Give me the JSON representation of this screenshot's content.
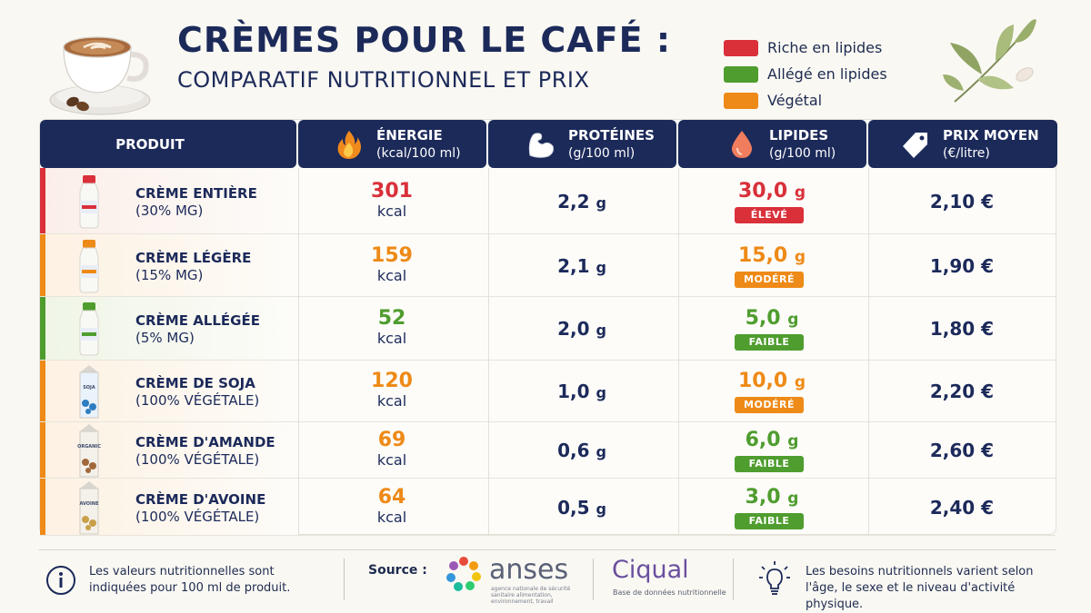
{
  "header": {
    "title": "CRÈMES POUR LE CAFÉ :",
    "subtitle": "COMPARATIF NUTRITIONNEL ET PRIX"
  },
  "legend": [
    {
      "label": "Riche en lipides",
      "color": "#d9303a"
    },
    {
      "label": "Allégé en lipides",
      "color": "#4f9d2f"
    },
    {
      "label": "Végétal",
      "color": "#ee8a17"
    }
  ],
  "table": {
    "columns": [
      {
        "label": "PRODUIT",
        "unit": ""
      },
      {
        "label": "ÉNERGIE",
        "unit": "(kcal/100 ml)",
        "icon": "flame-icon"
      },
      {
        "label": "PROTÉINES",
        "unit": "(g/100 ml)",
        "icon": "muscle-icon"
      },
      {
        "label": "LIPIDES",
        "unit": "(g/100 ml)",
        "icon": "drop-icon"
      },
      {
        "label": "PRIX MOYEN",
        "unit": "(€/litre)",
        "icon": "price-tag-icon"
      }
    ],
    "rows": [
      {
        "name": "CRÈME ENTIÈRE",
        "desc": "(30% MG)",
        "energy": "301",
        "energy_unit": "kcal",
        "protein": "2,2",
        "protein_unit": "g",
        "lipid": "30,0",
        "lipid_unit": "g",
        "badge": "ÉLEVÉ",
        "price": "2,10 €",
        "category_color": "#d9303a",
        "energy_color": "#d9303a",
        "lipid_color": "#d9303a",
        "badge_color": "#d9303a",
        "row_bg": "#fbeee8",
        "icon": "milk-bottle-icon"
      },
      {
        "name": "CRÈME LÉGÈRE",
        "desc": "(15% MG)",
        "energy": "159",
        "energy_unit": "kcal",
        "protein": "2,1",
        "protein_unit": "g",
        "lipid": "15,0",
        "lipid_unit": "g",
        "badge": "MODÉRÉ",
        "price": "1,90 €",
        "category_color": "#ee8a17",
        "energy_color": "#ee8a17",
        "lipid_color": "#ee8a17",
        "badge_color": "#ee8a17",
        "row_bg": "#fdf1e2",
        "icon": "milk-bottle-icon"
      },
      {
        "name": "CRÈME ALLÉGÉE",
        "desc": "(5% MG)",
        "energy": "52",
        "energy_unit": "kcal",
        "protein": "2,0",
        "protein_unit": "g",
        "lipid": "5,0",
        "lipid_unit": "g",
        "badge": "FAIBLE",
        "price": "1,80 €",
        "category_color": "#4f9d2f",
        "energy_color": "#4f9d2f",
        "lipid_color": "#4f9d2f",
        "badge_color": "#4f9d2f",
        "row_bg": "#eff5e6",
        "icon": "milk-bottle-icon"
      },
      {
        "name": "CRÈME DE SOJA",
        "desc": "(100% VÉGÉTALE)",
        "energy": "120",
        "energy_unit": "kcal",
        "protein": "1,0",
        "protein_unit": "g",
        "lipid": "10,0",
        "lipid_unit": "g",
        "badge": "MODÉRÉ",
        "price": "2,20 €",
        "category_color": "#ee8a17",
        "energy_color": "#ee8a17",
        "lipid_color": "#ee8a17",
        "badge_color": "#ee8a17",
        "row_bg": "#fdf1e2",
        "icon": "soy-carton-icon",
        "carton_label": "SOJA"
      },
      {
        "name": "CRÈME D'AMANDE",
        "desc": "(100% VÉGÉTALE)",
        "energy": "69",
        "energy_unit": "kcal",
        "protein": "0,6",
        "protein_unit": "g",
        "lipid": "6,0",
        "lipid_unit": "g",
        "badge": "FAIBLE",
        "price": "2,60 €",
        "category_color": "#ee8a17",
        "energy_color": "#ee8a17",
        "lipid_color": "#4f9d2f",
        "badge_color": "#4f9d2f",
        "row_bg": "#fdf1e2",
        "icon": "almond-carton-icon",
        "carton_label": "ORGANIC"
      },
      {
        "name": "CRÈME D'AVOINE",
        "desc": "(100% VÉGÉTALE)",
        "energy": "64",
        "energy_unit": "kcal",
        "protein": "0,5",
        "protein_unit": "g",
        "lipid": "3,0",
        "lipid_unit": "g",
        "badge": "FAIBLE",
        "price": "2,40 €",
        "category_color": "#ee8a17",
        "energy_color": "#ee8a17",
        "lipid_color": "#4f9d2f",
        "badge_color": "#4f9d2f",
        "row_bg": "#fdf1e2",
        "icon": "oat-carton-icon",
        "carton_label": "AVOINE"
      }
    ]
  },
  "footer": {
    "info_text": "Les valeurs nutritionnelles sont indiquées pour 100 ml de produit.",
    "source_label": "Source :",
    "anses_name": "anses",
    "anses_tagline": "agence nationale de sécurité sanitaire alimentation, environnement, travail",
    "ciqual_name": "Ciqual",
    "ciqual_tagline": "Base de données nutritionnelle",
    "note_text": "Les besoins nutritionnels varient selon l'âge, le sexe et le niveau d'activité physique."
  }
}
